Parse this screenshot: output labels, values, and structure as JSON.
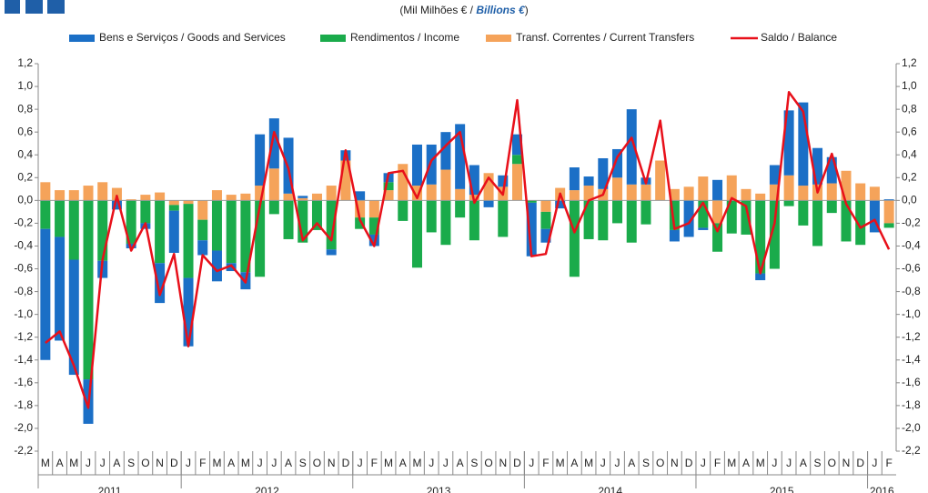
{
  "chart_data": {
    "type": "bar",
    "subtitle": [
      "(Mil Milhões € / ",
      "Billions €",
      ")"
    ],
    "categories": [
      "M",
      "A",
      "M",
      "J",
      "J",
      "A",
      "S",
      "O",
      "N",
      "D",
      "J",
      "F",
      "M",
      "A",
      "M",
      "J",
      "J",
      "A",
      "S",
      "O",
      "N",
      "D",
      "J",
      "F",
      "M",
      "A",
      "M",
      "J",
      "J",
      "A",
      "S",
      "O",
      "N",
      "D",
      "J",
      "F",
      "M",
      "A",
      "M",
      "J",
      "J",
      "A",
      "S",
      "O",
      "N",
      "D",
      "J",
      "F",
      "M",
      "A",
      "M",
      "J",
      "J",
      "A",
      "S",
      "O",
      "N",
      "D",
      "J",
      "F"
    ],
    "years": [
      {
        "label": "2011",
        "months": 10
      },
      {
        "label": "2012",
        "months": 12
      },
      {
        "label": "2013",
        "months": 12
      },
      {
        "label": "2014",
        "months": 12
      },
      {
        "label": "2015",
        "months": 12
      },
      {
        "label": "2016",
        "months": 2
      }
    ],
    "series": [
      {
        "name": "Bens e Serviços / Goods and Services",
        "color": "#1b6fc6",
        "type": "bar",
        "values": [
          -1.15,
          -0.91,
          -1.01,
          -0.39,
          -0.15,
          -0.08,
          -0.04,
          -0.05,
          -0.35,
          -0.37,
          -0.6,
          -0.13,
          -0.27,
          -0.07,
          -0.15,
          0.45,
          0.44,
          0.49,
          0.02,
          0,
          -0.05,
          0.09,
          0.08,
          -0.1,
          0.08,
          0,
          0.36,
          0.35,
          0.33,
          0.57,
          0.26,
          -0.06,
          0.1,
          0.18,
          -0.47,
          -0.12,
          -0.07,
          0.2,
          0.08,
          0.27,
          0.25,
          0.66,
          0.06,
          0,
          -0.1,
          -0.32,
          -0.02,
          0.18,
          0,
          0,
          -0.06,
          0.17,
          0.57,
          0.73,
          0.32,
          0.23,
          0,
          0,
          -0.28,
          0.01
        ]
      },
      {
        "name": "Rendimentos / Income",
        "color": "#1aab4b",
        "type": "bar",
        "values": [
          -0.25,
          -0.32,
          -0.52,
          -1.57,
          -0.53,
          0,
          -0.38,
          -0.2,
          -0.55,
          -0.05,
          -0.65,
          -0.18,
          -0.44,
          -0.55,
          -0.63,
          -0.67,
          -0.12,
          -0.34,
          -0.37,
          -0.26,
          -0.43,
          0,
          -0.1,
          -0.15,
          0.07,
          -0.18,
          -0.59,
          -0.28,
          -0.39,
          -0.15,
          -0.35,
          0,
          -0.32,
          0.08,
          -0.02,
          -0.15,
          0,
          -0.67,
          -0.34,
          -0.35,
          -0.2,
          -0.37,
          -0.21,
          0,
          -0.26,
          0,
          -0.24,
          -0.25,
          -0.29,
          -0.3,
          -0.64,
          -0.6,
          -0.05,
          -0.22,
          -0.4,
          -0.11,
          -0.36,
          -0.39,
          0,
          -0.04
        ]
      },
      {
        "name": "Transf. Correntes / Current Transfers",
        "color": "#f5a35a",
        "type": "bar",
        "values": [
          0.16,
          0.09,
          0.09,
          0.13,
          0.16,
          0.11,
          0.01,
          0.05,
          0.07,
          -0.04,
          -0.03,
          -0.17,
          0.09,
          0.05,
          0.06,
          0.13,
          0.28,
          0.06,
          0.02,
          0.06,
          0.13,
          0.35,
          -0.15,
          -0.15,
          0.09,
          0.32,
          0.13,
          0.14,
          0.27,
          0.1,
          0.05,
          0.24,
          0.12,
          0.32,
          0,
          -0.1,
          0.11,
          0.09,
          0.13,
          0.1,
          0.2,
          0.14,
          0.14,
          0.35,
          0.1,
          0.12,
          0.21,
          -0.2,
          0.22,
          0.1,
          0.06,
          0.14,
          0.22,
          0.13,
          0.14,
          0.15,
          0.26,
          0.15,
          0.12,
          -0.2
        ]
      },
      {
        "name": "Saldo / Balance",
        "color": "#e8101a",
        "type": "line",
        "values": [
          -1.25,
          -1.15,
          -1.45,
          -1.82,
          -0.52,
          0.04,
          -0.44,
          -0.2,
          -0.83,
          -0.47,
          -1.28,
          -0.48,
          -0.62,
          -0.57,
          -0.72,
          -0.05,
          0.6,
          0.28,
          -0.35,
          -0.2,
          -0.35,
          0.44,
          -0.17,
          -0.4,
          0.24,
          0.26,
          0.02,
          0.35,
          0.48,
          0.6,
          -0.02,
          0.2,
          0.05,
          0.88,
          -0.49,
          -0.47,
          0.06,
          -0.28,
          0,
          0.05,
          0.38,
          0.55,
          0.15,
          0.7,
          -0.25,
          -0.2,
          -0.02,
          -0.27,
          0.02,
          -0.05,
          -0.64,
          -0.2,
          0.95,
          0.78,
          0.07,
          0.41,
          -0.03,
          -0.24,
          -0.17,
          -0.43
        ]
      }
    ],
    "ylim": [
      -2.2,
      1.2
    ],
    "yticks": [
      {
        "value": 1.2,
        "label": "1,2"
      },
      {
        "value": 1.0,
        "label": "1,0"
      },
      {
        "value": 0.8,
        "label": "0,8"
      },
      {
        "value": 0.6,
        "label": "0,6"
      },
      {
        "value": 0.4,
        "label": "0,4"
      },
      {
        "value": 0.2,
        "label": "0,2"
      },
      {
        "value": 0,
        "label": "0,0"
      },
      {
        "value": -0.2,
        "label": "-0,2"
      },
      {
        "value": -0.4,
        "label": "-0,4"
      },
      {
        "value": -0.6,
        "label": "-0,6"
      },
      {
        "value": -0.8,
        "label": "-0,8"
      },
      {
        "value": -1.0,
        "label": "-1,0"
      },
      {
        "value": -1.2,
        "label": "-1,2"
      },
      {
        "value": -1.4,
        "label": "-1,4"
      },
      {
        "value": -1.6,
        "label": "-1,6"
      },
      {
        "value": -1.8,
        "label": "-1,8"
      },
      {
        "value": -2.0,
        "label": "-2,0"
      },
      {
        "value": -2.2,
        "label": "-2,2"
      }
    ],
    "legend": "top",
    "grid": false
  }
}
